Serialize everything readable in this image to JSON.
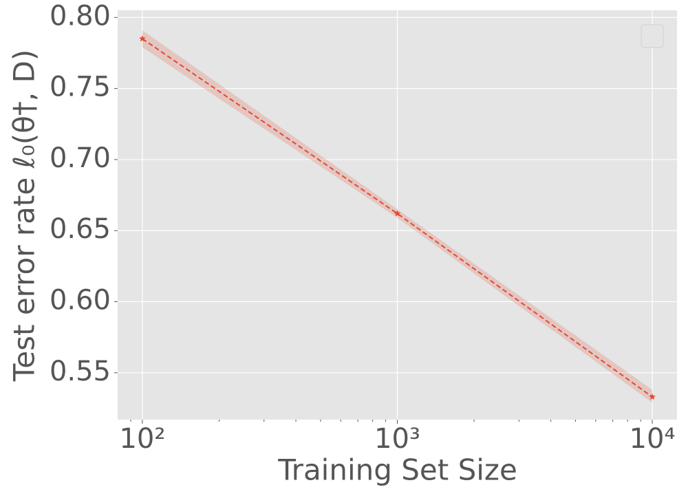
{
  "chart_data": {
    "type": "line",
    "xlabel": "Training Set Size",
    "ylabel": "Test error rate ℓ₀(θ†, D)",
    "x": [
      100,
      1000,
      10000
    ],
    "series": [
      {
        "color": "#E24A33",
        "values": [
          0.785,
          0.662,
          0.533
        ],
        "lower": [
          0.779,
          0.659,
          0.529
        ],
        "upper": [
          0.791,
          0.665,
          0.538
        ]
      }
    ],
    "xscale": "log",
    "xlim": [
      80,
      12500
    ],
    "ylim": [
      0.517,
      0.805
    ],
    "xticks": [
      {
        "value": 100,
        "label": "10²"
      },
      {
        "value": 1000,
        "label": "10³"
      },
      {
        "value": 10000,
        "label": "10⁴"
      }
    ],
    "xminorticks": [
      90,
      200,
      300,
      400,
      500,
      600,
      700,
      800,
      900,
      2000,
      3000,
      4000,
      5000,
      6000,
      7000,
      8000,
      9000
    ],
    "yticks": [
      {
        "value": 0.55,
        "label": "0.55"
      },
      {
        "value": 0.6,
        "label": "0.60"
      },
      {
        "value": 0.65,
        "label": "0.65"
      },
      {
        "value": 0.7,
        "label": "0.70"
      },
      {
        "value": 0.75,
        "label": "0.75"
      },
      {
        "value": 0.8,
        "label": "0.80"
      }
    ],
    "grid": true
  }
}
